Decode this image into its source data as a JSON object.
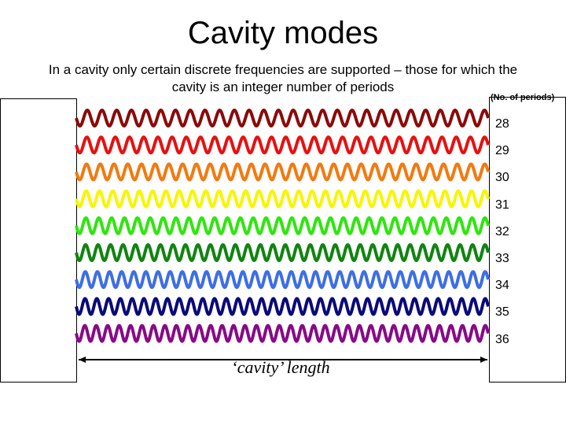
{
  "title": "Cavity modes",
  "subtitle": "In a cavity only certain discrete frequencies are supported – those for which the cavity is an integer number of periods",
  "periods_header": "(No. of periods)",
  "length_label": "‘cavity’ length",
  "modes": [
    {
      "periods": 28,
      "label": "28",
      "color": "#8b0a0a"
    },
    {
      "periods": 29,
      "label": "29",
      "color": "#e81010"
    },
    {
      "periods": 30,
      "label": "30",
      "color": "#f27a10"
    },
    {
      "periods": 31,
      "label": "31",
      "color": "#f6f600"
    },
    {
      "periods": 32,
      "label": "32",
      "color": "#2ee60e"
    },
    {
      "periods": 33,
      "label": "33",
      "color": "#108410"
    },
    {
      "periods": 34,
      "label": "34",
      "color": "#3c6ee6"
    },
    {
      "periods": 35,
      "label": "35",
      "color": "#0a0a7a"
    },
    {
      "periods": 36,
      "label": "36",
      "color": "#880a88"
    }
  ]
}
